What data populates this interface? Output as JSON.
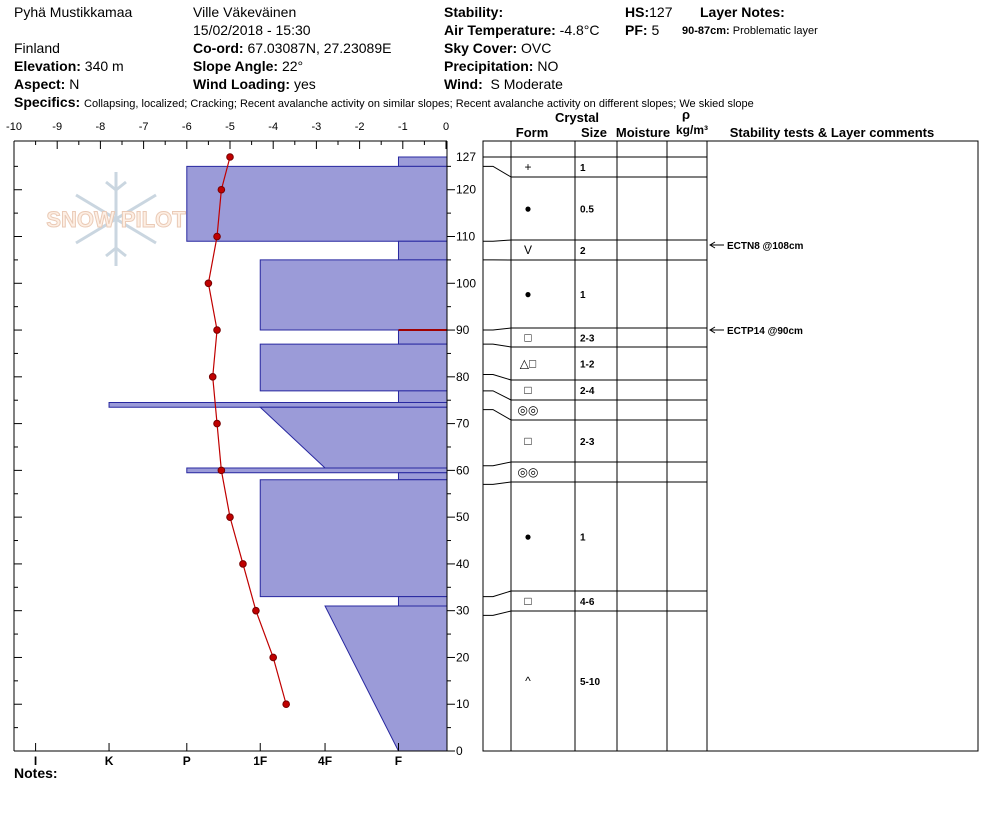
{
  "header": {
    "location": "Pyhä Mustikkamaa",
    "observer": "Ville Väkeväinen",
    "datetime": "15/02/2018 - 15:30",
    "country": "Finland",
    "elevation_label": "Elevation:",
    "elevation": "340 m",
    "aspect_label": "Aspect:",
    "aspect": "N",
    "coord_label": "Co-ord:",
    "coord": "67.03087N, 27.23089E",
    "slope_label": "Slope Angle:",
    "slope": "22°",
    "wind_loading_label": "Wind Loading:",
    "wind_loading": "yes",
    "stability_label": "Stability:",
    "stability": "",
    "air_temp_label": "Air Temperature:",
    "air_temp": "-4.8°C",
    "sky_label": "Sky Cover:",
    "sky": "OVC",
    "precip_label": "Precipitation:",
    "precip": "NO",
    "wind_label": "Wind:",
    "wind": "S Moderate",
    "hs_label": "HS:",
    "hs": "127",
    "pf_label": "PF:",
    "pf": "5",
    "layer_notes_label": "Layer Notes:",
    "layer_note_range": "90-87cm:",
    "layer_note_text": "Problematic layer",
    "specifics_label": "Specifics:",
    "specifics": "Collapsing, localized;  Cracking;  Recent avalanche activity on similar slopes;  Recent avalanche activity on different slopes;  We skied slope",
    "notes_label": "Notes:",
    "watermark": "SNOW PILOT"
  },
  "table": {
    "crystal_label": "Crystal",
    "form_label": "Form",
    "size_label": "Size",
    "moisture_label": "Moisture",
    "rho_label": "ρ",
    "density_unit": "kg/m³",
    "comments_label": "Stability tests & Layer comments"
  },
  "chart_data": {
    "type": "snow_profile",
    "temp_axis": {
      "ticks": [
        "-10",
        "-9",
        "-8",
        "-7",
        "-6",
        "-5",
        "-4",
        "-3",
        "-2",
        "-1",
        "0"
      ],
      "range": [
        -10,
        0
      ]
    },
    "height_axis": {
      "ticks": [
        "0",
        "10",
        "20",
        "30",
        "40",
        "50",
        "60",
        "70",
        "80",
        "90",
        "100",
        "110",
        "120",
        "127"
      ],
      "range": [
        0,
        127
      ]
    },
    "hardness_scale": [
      "I",
      "K",
      "P",
      "1F",
      "4F",
      "F"
    ],
    "temperature_profile": [
      {
        "height": 127,
        "temp": -5.0
      },
      {
        "height": 120,
        "temp": -5.2
      },
      {
        "height": 110,
        "temp": -5.3
      },
      {
        "height": 100,
        "temp": -5.5
      },
      {
        "height": 90,
        "temp": -5.3
      },
      {
        "height": 80,
        "temp": -5.4
      },
      {
        "height": 70,
        "temp": -5.3
      },
      {
        "height": 60,
        "temp": -5.2
      },
      {
        "height": 50,
        "temp": -5.0
      },
      {
        "height": 40,
        "temp": -4.7
      },
      {
        "height": 30,
        "temp": -4.4
      },
      {
        "height": 20,
        "temp": -4.0
      },
      {
        "height": 10,
        "temp": -3.7
      }
    ],
    "hardness_profile": [
      {
        "top": 127,
        "bottom": 125,
        "hardness": 1.1,
        "hardness_bottom": 1.1
      },
      {
        "top": 125,
        "bottom": 109,
        "hardness": 6.0,
        "hardness_bottom": 6.0
      },
      {
        "top": 109,
        "bottom": 105,
        "hardness": 1.1,
        "hardness_bottom": 1.1
      },
      {
        "top": 105,
        "bottom": 90,
        "hardness": 4.3,
        "hardness_bottom": 4.3
      },
      {
        "top": 90,
        "bottom": 87,
        "hardness": 1.1,
        "hardness_bottom": 1.1
      },
      {
        "top": 87,
        "bottom": 77,
        "hardness": 4.3,
        "hardness_bottom": 4.3
      },
      {
        "top": 77,
        "bottom": 74.5,
        "hardness": 1.1,
        "hardness_bottom": 1.1
      },
      {
        "top": 74.5,
        "bottom": 73.5,
        "hardness": 7.8,
        "hardness_bottom": 7.8
      },
      {
        "top": 73.5,
        "bottom": 60.5,
        "hardness": 4.3,
        "hardness_bottom": 2.8
      },
      {
        "top": 60.5,
        "bottom": 59.5,
        "hardness": 6.0,
        "hardness_bottom": 6.0
      },
      {
        "top": 59.5,
        "bottom": 58,
        "hardness": 1.1,
        "hardness_bottom": 1.1
      },
      {
        "top": 58,
        "bottom": 33,
        "hardness": 4.3,
        "hardness_bottom": 4.3
      },
      {
        "top": 33,
        "bottom": 31,
        "hardness": 1.1,
        "hardness_bottom": 1.1
      },
      {
        "top": 31,
        "bottom": 0,
        "hardness": 2.8,
        "hardness_bottom": 1.1
      }
    ],
    "layers": [
      {
        "top": 127,
        "bottom": 125,
        "form": "+",
        "size": "1"
      },
      {
        "top": 125,
        "bottom": 109,
        "form": "●",
        "size": "0.5"
      },
      {
        "top": 109,
        "bottom": 105,
        "form": "V",
        "size": "2"
      },
      {
        "top": 105,
        "bottom": 90,
        "form": "●",
        "size": "1"
      },
      {
        "top": 90,
        "bottom": 87,
        "form": "□",
        "size": "2-3"
      },
      {
        "top": 87,
        "bottom": 80.5,
        "form": "△□",
        "size": "1-2"
      },
      {
        "top": 80.5,
        "bottom": 77,
        "form": "□",
        "size": "2-4"
      },
      {
        "top": 77,
        "bottom": 73,
        "form": "◎◎",
        "size": ""
      },
      {
        "top": 73,
        "bottom": 61,
        "form": "□",
        "size": "2-3"
      },
      {
        "top": 61,
        "bottom": 57,
        "form": "◎◎",
        "size": ""
      },
      {
        "top": 57,
        "bottom": 33,
        "form": "●",
        "size": "1"
      },
      {
        "top": 33,
        "bottom": 29,
        "form": "□",
        "size": "4-6"
      },
      {
        "top": 29,
        "bottom": 0,
        "form": "^",
        "size": "5-10"
      }
    ],
    "stability_tests": [
      {
        "height": 108,
        "label": "ECTN8 @108cm"
      },
      {
        "height": 90,
        "label": "ECTP14 @90cm"
      }
    ],
    "colors": {
      "hardness_fill": "#9b9bd8",
      "temperature": "#c00000",
      "problem_layer": "#a00000"
    }
  }
}
